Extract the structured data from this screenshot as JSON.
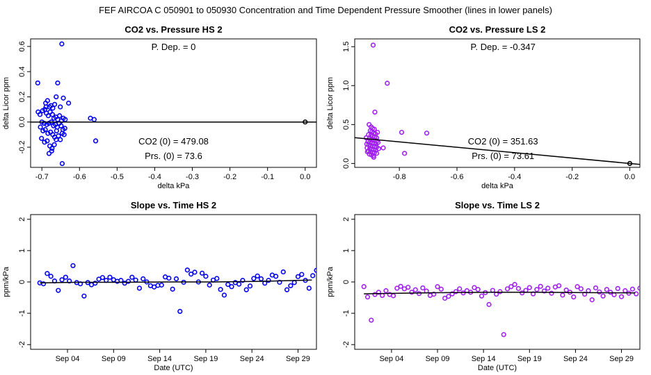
{
  "figure_title": "FEF   AIRCOA C   050901 to 050930   Concentration and Time Dependent Pressure Smoother (lines in lower panels)",
  "colors": {
    "hs": "#0000ee",
    "ls": "#a020f0",
    "line": "#000000",
    "origin": "#000000"
  },
  "chart_data": [
    {
      "id": "hs-pressure",
      "type": "scatter",
      "title": "CO2 vs. Pressure HS 2",
      "xlabel": "delta kPa",
      "ylabel": "delta Licor ppm",
      "xlim": [
        -0.73,
        0.03
      ],
      "ylim": [
        -0.36,
        0.66
      ],
      "xticks": [
        -0.7,
        -0.6,
        -0.5,
        -0.4,
        -0.3,
        -0.2,
        -0.1,
        0.0
      ],
      "xtick_labels": [
        "-0.7",
        "-0.6",
        "-0.5",
        "-0.4",
        "-0.3",
        "-0.2",
        "-0.1",
        "0.0"
      ],
      "yticks": [
        -0.2,
        0.0,
        0.2,
        0.4,
        0.6
      ],
      "ytick_labels": [
        "-0.2",
        "0.0",
        "0.2",
        "0.4",
        "0.6"
      ],
      "annotations": {
        "p_dep": "P. Dep. = 0",
        "co2_zero": "CO2 (0) = 479.08",
        "prs_zero": "Prs. (0) = 73.6"
      },
      "fit_line": {
        "slope": 0.0,
        "intercept": 0.0
      },
      "origin_point": [
        0.0,
        0.0
      ],
      "color_key": "hs",
      "points": [
        [
          -0.647,
          0.62
        ],
        [
          -0.711,
          0.31
        ],
        [
          -0.658,
          0.31
        ],
        [
          -0.662,
          0.2
        ],
        [
          -0.643,
          0.19
        ],
        [
          -0.685,
          0.17
        ],
        [
          -0.69,
          0.15
        ],
        [
          -0.629,
          0.15
        ],
        [
          -0.68,
          0.12
        ],
        [
          -0.71,
          0.08
        ],
        [
          -0.705,
          0.06
        ],
        [
          -0.698,
          0.09
        ],
        [
          -0.692,
          0.1
        ],
        [
          -0.688,
          0.07
        ],
        [
          -0.683,
          0.05
        ],
        [
          -0.678,
          0.08
        ],
        [
          -0.672,
          0.06
        ],
        [
          -0.668,
          0.03
        ],
        [
          -0.663,
          0.04
        ],
        [
          -0.658,
          0.02
        ],
        [
          -0.653,
          0.05
        ],
        [
          -0.648,
          0.01
        ],
        [
          -0.643,
          0.03
        ],
        [
          -0.638,
          0.02
        ],
        [
          -0.7,
          0.0
        ],
        [
          -0.694,
          -0.01
        ],
        [
          -0.687,
          -0.02
        ],
        [
          -0.681,
          -0.01
        ],
        [
          -0.675,
          0.0
        ],
        [
          -0.669,
          -0.03
        ],
        [
          -0.664,
          -0.02
        ],
        [
          -0.659,
          -0.04
        ],
        [
          -0.654,
          -0.01
        ],
        [
          -0.649,
          -0.03
        ],
        [
          -0.644,
          -0.06
        ],
        [
          -0.639,
          -0.05
        ],
        [
          -0.704,
          -0.04
        ],
        [
          -0.697,
          -0.07
        ],
        [
          -0.691,
          -0.06
        ],
        [
          -0.684,
          -0.09
        ],
        [
          -0.677,
          -0.08
        ],
        [
          -0.671,
          -0.1
        ],
        [
          -0.666,
          -0.12
        ],
        [
          -0.661,
          -0.07
        ],
        [
          -0.656,
          -0.11
        ],
        [
          -0.651,
          -0.14
        ],
        [
          -0.646,
          -0.09
        ],
        [
          -0.641,
          -0.1
        ],
        [
          -0.701,
          -0.13
        ],
        [
          -0.693,
          -0.16
        ],
        [
          -0.686,
          -0.15
        ],
        [
          -0.679,
          -0.19
        ],
        [
          -0.673,
          -0.21
        ],
        [
          -0.667,
          -0.18
        ],
        [
          -0.662,
          -0.14
        ],
        [
          -0.681,
          -0.25
        ],
        [
          -0.674,
          -0.23
        ],
        [
          -0.646,
          -0.33
        ],
        [
          -0.571,
          0.03
        ],
        [
          -0.561,
          0.02
        ],
        [
          -0.557,
          -0.15
        ],
        [
          -0.689,
          0.12
        ],
        [
          -0.676,
          0.13
        ],
        [
          -0.671,
          0.11
        ],
        [
          -0.666,
          0.14
        ],
        [
          -0.651,
          0.12
        ]
      ]
    },
    {
      "id": "ls-pressure",
      "type": "scatter",
      "title": "CO2 vs. Pressure LS 2",
      "xlabel": "delta kPa",
      "ylabel": "delta Licor ppm",
      "xlim": [
        -0.955,
        0.035
      ],
      "ylim": [
        -0.05,
        1.6
      ],
      "xticks": [
        -0.8,
        -0.6,
        -0.4,
        -0.2,
        0.0
      ],
      "xtick_labels": [
        "-0.8",
        "-0.6",
        "-0.4",
        "-0.2",
        "0.0"
      ],
      "yticks": [
        0.0,
        0.5,
        1.0,
        1.5
      ],
      "ytick_labels": [
        "0.0",
        "0.5",
        "1.0",
        "1.5"
      ],
      "annotations": {
        "p_dep": "P. Dep. = -0.347",
        "co2_zero": "CO2 (0) = 351.63",
        "prs_zero": "Prs. (0) = 73.61"
      },
      "fit_line": {
        "slope": -0.347,
        "intercept": 0.0
      },
      "origin_point": [
        0.0,
        0.0
      ],
      "color_key": "ls",
      "points": [
        [
          -0.891,
          1.52
        ],
        [
          -0.842,
          1.03
        ],
        [
          -0.885,
          0.66
        ],
        [
          -0.792,
          0.4
        ],
        [
          -0.705,
          0.39
        ],
        [
          -0.856,
          0.2
        ],
        [
          -0.782,
          0.13
        ],
        [
          -0.889,
          0.08
        ],
        [
          -0.905,
          0.5
        ],
        [
          -0.898,
          0.47
        ],
        [
          -0.893,
          0.45
        ],
        [
          -0.887,
          0.44
        ],
        [
          -0.901,
          0.42
        ],
        [
          -0.895,
          0.41
        ],
        [
          -0.889,
          0.39
        ],
        [
          -0.883,
          0.38
        ],
        [
          -0.907,
          0.37
        ],
        [
          -0.899,
          0.36
        ],
        [
          -0.892,
          0.35
        ],
        [
          -0.885,
          0.34
        ],
        [
          -0.879,
          0.33
        ],
        [
          -0.904,
          0.32
        ],
        [
          -0.897,
          0.31
        ],
        [
          -0.89,
          0.3
        ],
        [
          -0.884,
          0.3
        ],
        [
          -0.878,
          0.29
        ],
        [
          -0.909,
          0.28
        ],
        [
          -0.902,
          0.27
        ],
        [
          -0.895,
          0.26
        ],
        [
          -0.888,
          0.26
        ],
        [
          -0.881,
          0.25
        ],
        [
          -0.906,
          0.24
        ],
        [
          -0.899,
          0.23
        ],
        [
          -0.892,
          0.22
        ],
        [
          -0.885,
          0.22
        ],
        [
          -0.879,
          0.21
        ],
        [
          -0.912,
          0.2
        ],
        [
          -0.903,
          0.19
        ],
        [
          -0.896,
          0.18
        ],
        [
          -0.889,
          0.18
        ],
        [
          -0.882,
          0.17
        ],
        [
          -0.907,
          0.16
        ],
        [
          -0.9,
          0.15
        ],
        [
          -0.893,
          0.14
        ],
        [
          -0.886,
          0.14
        ],
        [
          -0.879,
          0.13
        ],
        [
          -0.904,
          0.12
        ],
        [
          -0.897,
          0.11
        ],
        [
          -0.89,
          0.1
        ],
        [
          -0.915,
          0.33
        ],
        [
          -0.913,
          0.25
        ],
        [
          -0.911,
          0.15
        ],
        [
          -0.876,
          0.4
        ],
        [
          -0.874,
          0.27
        ],
        [
          -0.872,
          0.19
        ]
      ]
    },
    {
      "id": "hs-time",
      "type": "scatter",
      "title": "Slope vs. Time HS 2",
      "xlabel": "Date (UTC)",
      "ylabel": "ppm/kPa",
      "xlim": [
        0.0,
        31.0
      ],
      "ylim": [
        -2.15,
        2.15
      ],
      "xticks": [
        4,
        9,
        14,
        19,
        24,
        29
      ],
      "xtick_labels": [
        "Sep 04",
        "Sep 09",
        "Sep 14",
        "Sep 19",
        "Sep 24",
        "Sep 29"
      ],
      "yticks": [
        -2,
        -1,
        0,
        1,
        2
      ],
      "ytick_labels": [
        "-2",
        "-1",
        "0",
        "1",
        "2"
      ],
      "smoother": [
        [
          1.0,
          -0.03
        ],
        [
          5.0,
          -0.01
        ],
        [
          10.0,
          -0.01
        ],
        [
          15.0,
          0.0
        ],
        [
          20.0,
          0.0
        ],
        [
          25.0,
          0.02
        ],
        [
          30.5,
          0.06
        ]
      ],
      "color_key": "hs",
      "points": [
        [
          1.0,
          -0.03
        ],
        [
          1.4,
          -0.06
        ],
        [
          1.8,
          0.27
        ],
        [
          2.2,
          0.18
        ],
        [
          2.6,
          0.03
        ],
        [
          3.0,
          -0.27
        ],
        [
          3.4,
          0.07
        ],
        [
          3.8,
          0.15
        ],
        [
          4.2,
          0.03
        ],
        [
          4.6,
          0.52
        ],
        [
          5.0,
          -0.02
        ],
        [
          5.4,
          -0.06
        ],
        [
          5.8,
          -0.45
        ],
        [
          6.2,
          -0.02
        ],
        [
          6.6,
          -0.09
        ],
        [
          7.0,
          -0.04
        ],
        [
          7.4,
          0.09
        ],
        [
          7.8,
          0.14
        ],
        [
          8.2,
          0.05
        ],
        [
          8.6,
          0.15
        ],
        [
          9.0,
          0.07
        ],
        [
          9.4,
          0.02
        ],
        [
          9.8,
          0.05
        ],
        [
          10.2,
          -0.04
        ],
        [
          10.6,
          0.02
        ],
        [
          11.0,
          0.15
        ],
        [
          11.4,
          0.06
        ],
        [
          11.8,
          -0.2
        ],
        [
          12.2,
          0.1
        ],
        [
          12.6,
          0.0
        ],
        [
          13.0,
          -0.12
        ],
        [
          13.4,
          -0.16
        ],
        [
          13.8,
          -0.11
        ],
        [
          14.2,
          -0.1
        ],
        [
          14.6,
          0.16
        ],
        [
          15.0,
          0.12
        ],
        [
          15.4,
          -0.23
        ],
        [
          15.8,
          0.1
        ],
        [
          16.2,
          -0.94
        ],
        [
          16.6,
          -0.01
        ],
        [
          17.0,
          0.38
        ],
        [
          17.4,
          0.25
        ],
        [
          17.8,
          0.31
        ],
        [
          18.2,
          0.0
        ],
        [
          18.6,
          0.28
        ],
        [
          19.0,
          0.18
        ],
        [
          19.4,
          -0.1
        ],
        [
          19.8,
          0.06
        ],
        [
          20.2,
          0.11
        ],
        [
          20.6,
          -0.24
        ],
        [
          21.0,
          -0.42
        ],
        [
          21.4,
          -0.08
        ],
        [
          21.8,
          -0.15
        ],
        [
          22.2,
          -0.02
        ],
        [
          22.6,
          -0.07
        ],
        [
          23.0,
          0.05
        ],
        [
          23.4,
          -0.25
        ],
        [
          23.8,
          -0.13
        ],
        [
          24.2,
          0.11
        ],
        [
          24.6,
          0.19
        ],
        [
          25.0,
          0.1
        ],
        [
          25.4,
          -0.04
        ],
        [
          25.8,
          0.05
        ],
        [
          26.2,
          0.22
        ],
        [
          26.6,
          0.18
        ],
        [
          27.0,
          -0.01
        ],
        [
          27.4,
          0.32
        ],
        [
          27.8,
          -0.25
        ],
        [
          28.2,
          -0.12
        ],
        [
          28.6,
          -0.02
        ],
        [
          29.0,
          0.17
        ],
        [
          29.4,
          0.24
        ],
        [
          29.8,
          0.05
        ],
        [
          30.2,
          -0.2
        ],
        [
          30.6,
          0.2
        ],
        [
          31.0,
          0.37
        ]
      ]
    },
    {
      "id": "ls-time",
      "type": "scatter",
      "title": "Slope vs. Time LS 2",
      "xlabel": "Date (UTC)",
      "ylabel": "ppm/kPa",
      "xlim": [
        0.0,
        31.0
      ],
      "ylim": [
        -2.15,
        2.15
      ],
      "xticks": [
        4,
        9,
        14,
        19,
        24,
        29
      ],
      "xtick_labels": [
        "Sep 04",
        "Sep 09",
        "Sep 14",
        "Sep 19",
        "Sep 24",
        "Sep 29"
      ],
      "yticks": [
        -2,
        -1,
        0,
        1,
        2
      ],
      "ytick_labels": [
        "-2",
        "-1",
        "0",
        "1",
        "2"
      ],
      "smoother": [
        [
          1.0,
          -0.38
        ],
        [
          5.0,
          -0.36
        ],
        [
          10.0,
          -0.34
        ],
        [
          15.0,
          -0.33
        ],
        [
          20.0,
          -0.33
        ],
        [
          25.0,
          -0.34
        ],
        [
          30.5,
          -0.35
        ]
      ],
      "color_key": "ls",
      "points": [
        [
          1.0,
          -0.15
        ],
        [
          1.4,
          -0.48
        ],
        [
          1.8,
          -1.22
        ],
        [
          2.2,
          -0.4
        ],
        [
          2.6,
          -0.33
        ],
        [
          3.0,
          -0.43
        ],
        [
          3.4,
          -0.28
        ],
        [
          3.8,
          -0.4
        ],
        [
          4.2,
          -0.44
        ],
        [
          4.6,
          -0.2
        ],
        [
          5.0,
          -0.14
        ],
        [
          5.4,
          -0.22
        ],
        [
          5.8,
          -0.17
        ],
        [
          6.2,
          -0.33
        ],
        [
          6.6,
          -0.25
        ],
        [
          7.0,
          -0.37
        ],
        [
          7.4,
          -0.19
        ],
        [
          7.8,
          -0.29
        ],
        [
          8.2,
          -0.43
        ],
        [
          8.6,
          -0.39
        ],
        [
          9.0,
          -0.15
        ],
        [
          9.4,
          -0.23
        ],
        [
          9.8,
          -0.52
        ],
        [
          10.2,
          -0.46
        ],
        [
          10.6,
          -0.38
        ],
        [
          11.0,
          -0.31
        ],
        [
          11.4,
          -0.22
        ],
        [
          11.8,
          -0.35
        ],
        [
          12.2,
          -0.28
        ],
        [
          12.6,
          -0.33
        ],
        [
          13.0,
          -0.18
        ],
        [
          13.4,
          -0.24
        ],
        [
          13.8,
          -0.45
        ],
        [
          14.2,
          -0.34
        ],
        [
          14.6,
          -0.72
        ],
        [
          15.0,
          -0.27
        ],
        [
          15.4,
          -0.39
        ],
        [
          15.8,
          -0.31
        ],
        [
          16.2,
          -1.68
        ],
        [
          16.6,
          -0.22
        ],
        [
          17.0,
          -0.15
        ],
        [
          17.4,
          -0.08
        ],
        [
          17.8,
          -0.21
        ],
        [
          18.2,
          -0.35
        ],
        [
          18.6,
          -0.27
        ],
        [
          19.0,
          -0.18
        ],
        [
          19.4,
          -0.38
        ],
        [
          19.8,
          -0.24
        ],
        [
          20.2,
          -0.14
        ],
        [
          20.6,
          -0.29
        ],
        [
          21.0,
          -0.2
        ],
        [
          21.4,
          -0.36
        ],
        [
          21.8,
          -0.16
        ],
        [
          22.2,
          -0.12
        ],
        [
          22.6,
          -0.42
        ],
        [
          23.0,
          -0.26
        ],
        [
          23.4,
          -0.33
        ],
        [
          23.8,
          -0.48
        ],
        [
          24.2,
          -0.15
        ],
        [
          24.6,
          -0.22
        ],
        [
          25.0,
          -0.39
        ],
        [
          25.4,
          -0.28
        ],
        [
          25.8,
          -0.57
        ],
        [
          26.2,
          -0.19
        ],
        [
          26.6,
          -0.32
        ],
        [
          27.0,
          -0.45
        ],
        [
          27.4,
          -0.24
        ],
        [
          27.8,
          -0.33
        ],
        [
          28.2,
          -0.41
        ],
        [
          28.6,
          -0.21
        ],
        [
          29.0,
          -0.47
        ],
        [
          29.4,
          -0.28
        ],
        [
          29.8,
          -0.36
        ],
        [
          30.2,
          -0.23
        ],
        [
          30.6,
          -0.38
        ],
        [
          31.0,
          -0.2
        ]
      ]
    }
  ]
}
